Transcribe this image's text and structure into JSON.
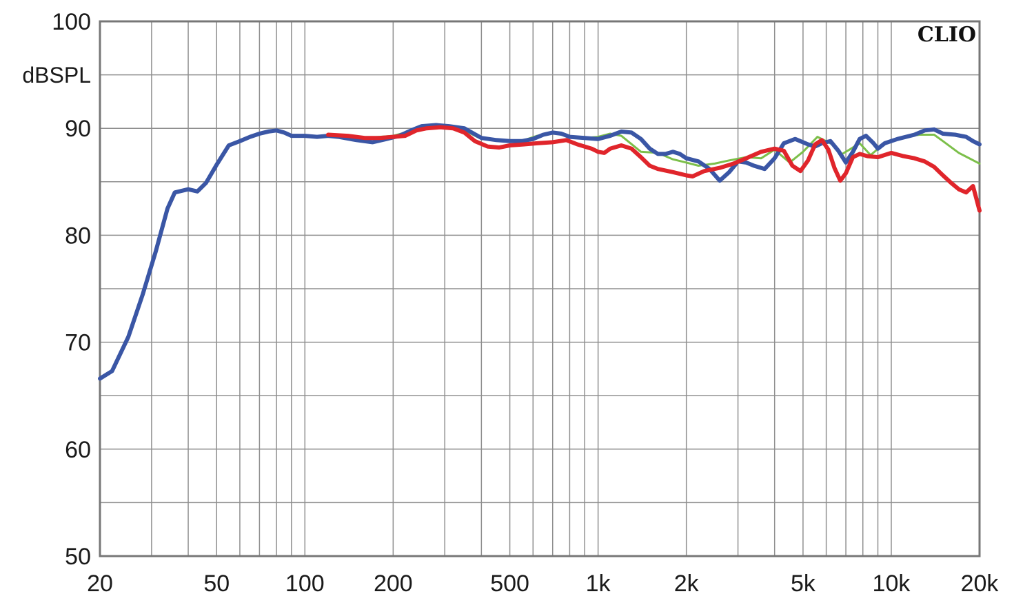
{
  "chart_data": {
    "type": "line",
    "brand": "CLIO",
    "ylabel": "dBSPL",
    "x_scale": "log",
    "xlim": [
      20,
      20000
    ],
    "ylim": [
      50,
      100
    ],
    "grid": true,
    "x_ticks": [
      {
        "value": 20,
        "label": "20"
      },
      {
        "value": 50,
        "label": "50"
      },
      {
        "value": 100,
        "label": "100"
      },
      {
        "value": 200,
        "label": "200"
      },
      {
        "value": 500,
        "label": "500"
      },
      {
        "value": 1000,
        "label": "1k"
      },
      {
        "value": 2000,
        "label": "2k"
      },
      {
        "value": 5000,
        "label": "5k"
      },
      {
        "value": 10000,
        "label": "10k"
      },
      {
        "value": 20000,
        "label": "20k"
      }
    ],
    "y_ticks": [
      {
        "value": 50,
        "label": "50"
      },
      {
        "value": 60,
        "label": "60"
      },
      {
        "value": 70,
        "label": "70"
      },
      {
        "value": 80,
        "label": "80"
      },
      {
        "value": 90,
        "label": "90"
      },
      {
        "value": 100,
        "label": "100"
      }
    ],
    "series": [
      {
        "color": "#7cbf4a",
        "width": 3,
        "points": [
          [
            120,
            89.4
          ],
          [
            160,
            89.1
          ],
          [
            200,
            89.3
          ],
          [
            250,
            90.0
          ],
          [
            300,
            90.2
          ],
          [
            350,
            89.8
          ],
          [
            400,
            89.0
          ],
          [
            500,
            88.8
          ],
          [
            560,
            88.9
          ],
          [
            620,
            89.3
          ],
          [
            700,
            89.6
          ],
          [
            800,
            89.2
          ],
          [
            900,
            89.1
          ],
          [
            1000,
            89.2
          ],
          [
            1100,
            89.5
          ],
          [
            1200,
            89.3
          ],
          [
            1400,
            87.8
          ],
          [
            1600,
            87.7
          ],
          [
            1800,
            87.1
          ],
          [
            2000,
            86.8
          ],
          [
            2200,
            86.5
          ],
          [
            2500,
            86.7
          ],
          [
            2800,
            87.0
          ],
          [
            3200,
            87.3
          ],
          [
            3600,
            87.2
          ],
          [
            4000,
            88.0
          ],
          [
            4500,
            86.8
          ],
          [
            5000,
            87.8
          ],
          [
            5600,
            89.2
          ],
          [
            6300,
            88.5
          ],
          [
            6700,
            87.5
          ],
          [
            7200,
            88.0
          ],
          [
            7800,
            88.6
          ],
          [
            8500,
            87.5
          ],
          [
            9500,
            88.6
          ],
          [
            11000,
            89.2
          ],
          [
            12500,
            89.4
          ],
          [
            14000,
            89.4
          ],
          [
            15000,
            88.8
          ],
          [
            17000,
            87.7
          ],
          [
            20000,
            86.7
          ]
        ]
      },
      {
        "color": "#3a56a5",
        "width": 6,
        "points": [
          [
            20,
            66.6
          ],
          [
            22,
            67.3
          ],
          [
            25,
            70.5
          ],
          [
            28,
            74.5
          ],
          [
            31,
            78.5
          ],
          [
            34,
            82.5
          ],
          [
            36,
            84.0
          ],
          [
            40,
            84.3
          ],
          [
            43,
            84.1
          ],
          [
            46,
            84.9
          ],
          [
            50,
            86.6
          ],
          [
            55,
            88.4
          ],
          [
            60,
            88.8
          ],
          [
            65,
            89.2
          ],
          [
            70,
            89.5
          ],
          [
            75,
            89.7
          ],
          [
            80,
            89.8
          ],
          [
            85,
            89.6
          ],
          [
            90,
            89.3
          ],
          [
            100,
            89.3
          ],
          [
            110,
            89.2
          ],
          [
            120,
            89.3
          ],
          [
            130,
            89.2
          ],
          [
            150,
            88.9
          ],
          [
            170,
            88.7
          ],
          [
            190,
            89.0
          ],
          [
            210,
            89.3
          ],
          [
            230,
            89.8
          ],
          [
            250,
            90.2
          ],
          [
            280,
            90.3
          ],
          [
            310,
            90.2
          ],
          [
            350,
            90.0
          ],
          [
            400,
            89.1
          ],
          [
            450,
            88.9
          ],
          [
            500,
            88.8
          ],
          [
            550,
            88.8
          ],
          [
            600,
            89.0
          ],
          [
            650,
            89.4
          ],
          [
            700,
            89.6
          ],
          [
            750,
            89.5
          ],
          [
            800,
            89.2
          ],
          [
            900,
            89.1
          ],
          [
            1000,
            89.0
          ],
          [
            1100,
            89.3
          ],
          [
            1200,
            89.7
          ],
          [
            1300,
            89.6
          ],
          [
            1400,
            89.0
          ],
          [
            1500,
            88.1
          ],
          [
            1600,
            87.6
          ],
          [
            1700,
            87.6
          ],
          [
            1800,
            87.8
          ],
          [
            1900,
            87.6
          ],
          [
            2000,
            87.2
          ],
          [
            2200,
            86.9
          ],
          [
            2400,
            86.2
          ],
          [
            2600,
            85.1
          ],
          [
            2800,
            85.9
          ],
          [
            3000,
            86.9
          ],
          [
            3200,
            86.8
          ],
          [
            3400,
            86.5
          ],
          [
            3700,
            86.2
          ],
          [
            4000,
            87.2
          ],
          [
            4300,
            88.6
          ],
          [
            4700,
            89.0
          ],
          [
            5200,
            88.5
          ],
          [
            5500,
            88.3
          ],
          [
            5800,
            88.6
          ],
          [
            6200,
            88.8
          ],
          [
            6600,
            87.9
          ],
          [
            7000,
            86.8
          ],
          [
            7400,
            87.8
          ],
          [
            7800,
            89.0
          ],
          [
            8200,
            89.3
          ],
          [
            8700,
            88.6
          ],
          [
            9000,
            88.1
          ],
          [
            9500,
            88.6
          ],
          [
            10500,
            89.0
          ],
          [
            12000,
            89.4
          ],
          [
            13000,
            89.8
          ],
          [
            14000,
            89.9
          ],
          [
            15000,
            89.5
          ],
          [
            16500,
            89.4
          ],
          [
            18000,
            89.2
          ],
          [
            19000,
            88.8
          ],
          [
            20000,
            88.5
          ]
        ]
      },
      {
        "color": "#e0252b",
        "width": 6,
        "points": [
          [
            120,
            89.4
          ],
          [
            140,
            89.3
          ],
          [
            160,
            89.1
          ],
          [
            180,
            89.1
          ],
          [
            200,
            89.2
          ],
          [
            220,
            89.3
          ],
          [
            240,
            89.8
          ],
          [
            260,
            90.0
          ],
          [
            290,
            90.1
          ],
          [
            320,
            90.0
          ],
          [
            350,
            89.6
          ],
          [
            380,
            88.8
          ],
          [
            420,
            88.3
          ],
          [
            460,
            88.2
          ],
          [
            500,
            88.4
          ],
          [
            560,
            88.5
          ],
          [
            620,
            88.6
          ],
          [
            700,
            88.7
          ],
          [
            780,
            88.9
          ],
          [
            850,
            88.5
          ],
          [
            950,
            88.1
          ],
          [
            1000,
            87.8
          ],
          [
            1050,
            87.7
          ],
          [
            1100,
            88.1
          ],
          [
            1200,
            88.4
          ],
          [
            1300,
            88.1
          ],
          [
            1400,
            87.3
          ],
          [
            1500,
            86.5
          ],
          [
            1600,
            86.2
          ],
          [
            1800,
            85.9
          ],
          [
            2000,
            85.6
          ],
          [
            2100,
            85.5
          ],
          [
            2300,
            86.0
          ],
          [
            2600,
            86.3
          ],
          [
            2900,
            86.7
          ],
          [
            3200,
            87.2
          ],
          [
            3600,
            87.8
          ],
          [
            4000,
            88.1
          ],
          [
            4300,
            87.9
          ],
          [
            4600,
            86.5
          ],
          [
            4900,
            86.0
          ],
          [
            5200,
            87.0
          ],
          [
            5500,
            88.5
          ],
          [
            5800,
            88.9
          ],
          [
            6100,
            88.0
          ],
          [
            6400,
            86.3
          ],
          [
            6700,
            85.1
          ],
          [
            7000,
            85.8
          ],
          [
            7400,
            87.3
          ],
          [
            7800,
            87.6
          ],
          [
            8300,
            87.4
          ],
          [
            9000,
            87.3
          ],
          [
            10000,
            87.7
          ],
          [
            11000,
            87.4
          ],
          [
            12000,
            87.2
          ],
          [
            13000,
            86.9
          ],
          [
            14000,
            86.4
          ],
          [
            15000,
            85.6
          ],
          [
            16000,
            84.9
          ],
          [
            17000,
            84.3
          ],
          [
            18000,
            84.0
          ],
          [
            19000,
            84.6
          ],
          [
            20000,
            82.3
          ]
        ]
      }
    ]
  }
}
